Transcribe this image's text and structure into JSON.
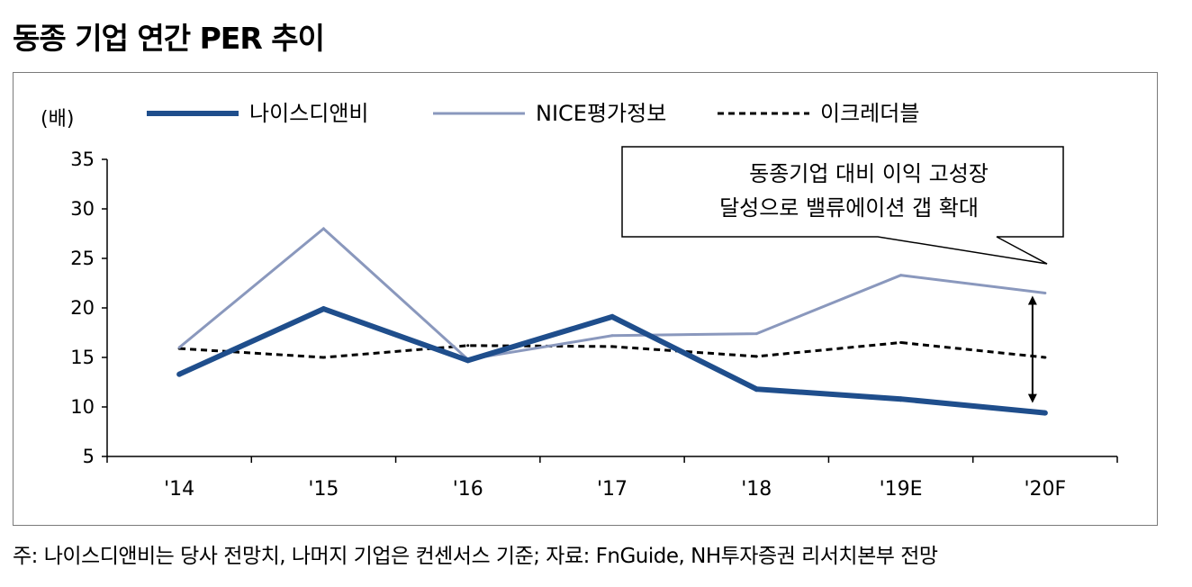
{
  "title": "동종 기업 연간 PER 추이",
  "footnote": "주: 나이스디앤비는 당사 전망치, 나머지 기업은 컨센서스 기준; 자료: FnGuide, NH투자증권 리서치본부 전망",
  "chart_data": {
    "type": "line",
    "title": "동종 기업 연간 PER 추이",
    "ylabel": "(배)",
    "xlabel": "",
    "categories": [
      "'14",
      "'15",
      "'16",
      "'17",
      "'18",
      "'19E",
      "'20F"
    ],
    "ylim": [
      5,
      35
    ],
    "yticks": [
      5,
      10,
      15,
      20,
      25,
      30,
      35
    ],
    "grid": false,
    "legend_position": "top",
    "series": [
      {
        "name": "나이스디앤비",
        "values": [
          13.3,
          19.9,
          14.7,
          19.1,
          11.8,
          10.8,
          9.4
        ],
        "color": "#1f4e8c",
        "style": "solid-thick"
      },
      {
        "name": "NICE평가정보",
        "values": [
          16.0,
          28.0,
          14.8,
          17.2,
          17.4,
          23.3,
          21.5
        ],
        "color": "#8a98bd",
        "style": "solid"
      },
      {
        "name": "이크레더블",
        "values": [
          15.9,
          15.0,
          16.2,
          16.1,
          15.1,
          16.5,
          15.0
        ],
        "color": "#000000",
        "style": "dashed"
      }
    ],
    "annotation": {
      "lines": [
        "동종기업 대비 이익 고성장",
        "달성으로 밸류에이션 갭 확대"
      ],
      "arrow_from": 21.5,
      "arrow_to": 9.4
    }
  }
}
